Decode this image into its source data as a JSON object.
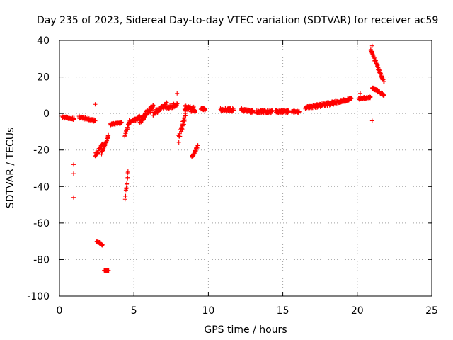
{
  "chart_data": {
    "type": "scatter",
    "title": "Day 235 of 2023, Sidereal Day-to-day VTEC variation (SDTVAR) for receiver ac59",
    "xlabel": "GPS time / hours",
    "ylabel": "SDTVAR / TECUs",
    "xlim": [
      0,
      25
    ],
    "ylim": [
      -100,
      40
    ],
    "xticks": [
      0,
      5,
      10,
      15,
      20,
      25
    ],
    "yticks": [
      -100,
      -80,
      -60,
      -40,
      -20,
      0,
      20,
      40
    ],
    "xtick_labels": [
      "0",
      "5",
      "10",
      "15",
      "20",
      "25"
    ],
    "ytick_labels": [
      "-100",
      "-80",
      "-60",
      "-40",
      "-20",
      "0",
      "20",
      "40"
    ],
    "grid": true,
    "marker": "+",
    "color": "#ff0000",
    "segments": [
      {
        "x0": 0.2,
        "x1": 1.0,
        "y0": -2,
        "y1": -3,
        "jitter": 1.2
      },
      {
        "x0": 1.3,
        "x1": 2.4,
        "y0": -2,
        "y1": -4,
        "jitter": 1.2
      },
      {
        "x0": 2.4,
        "x1": 2.9,
        "y0": -23,
        "y1": -17,
        "jitter": 2.0
      },
      {
        "x0": 2.8,
        "x1": 3.3,
        "y0": -22,
        "y1": -12,
        "jitter": 1.5
      },
      {
        "x0": 2.5,
        "x1": 2.9,
        "y0": -70,
        "y1": -72,
        "jitter": 0.8
      },
      {
        "x0": 3.0,
        "x1": 3.3,
        "y0": -86,
        "y1": -86,
        "jitter": 0.3
      },
      {
        "x0": 3.4,
        "x1": 4.2,
        "y0": -6,
        "y1": -5,
        "jitter": 0.8
      },
      {
        "x0": 4.4,
        "x1": 4.7,
        "y0": -12,
        "y1": -4,
        "jitter": 1.5
      },
      {
        "x0": 4.4,
        "x1": 4.6,
        "y0": -47,
        "y1": -32,
        "jitter": 2.0
      },
      {
        "x0": 4.7,
        "x1": 5.4,
        "y0": -5,
        "y1": -2,
        "jitter": 1.5
      },
      {
        "x0": 5.4,
        "x1": 6.3,
        "y0": -4,
        "y1": 4,
        "jitter": 3.0
      },
      {
        "x0": 6.3,
        "x1": 7.2,
        "y0": 0,
        "y1": 5,
        "jitter": 2.5
      },
      {
        "x0": 7.2,
        "x1": 7.9,
        "y0": 3,
        "y1": 5,
        "jitter": 2.0
      },
      {
        "x0": 8.0,
        "x1": 8.5,
        "y0": -14,
        "y1": 0,
        "jitter": 4.0
      },
      {
        "x0": 8.4,
        "x1": 9.1,
        "y0": 3,
        "y1": 2,
        "jitter": 3.0
      },
      {
        "x0": 8.9,
        "x1": 9.3,
        "y0": -24,
        "y1": -18,
        "jitter": 2.0
      },
      {
        "x0": 9.5,
        "x1": 9.8,
        "y0": 3,
        "y1": 2,
        "jitter": 1.5
      },
      {
        "x0": 10.8,
        "x1": 11.7,
        "y0": 2,
        "y1": 2,
        "jitter": 2.0
      },
      {
        "x0": 12.2,
        "x1": 13.0,
        "y0": 2,
        "y1": 1,
        "jitter": 1.5
      },
      {
        "x0": 13.2,
        "x1": 14.3,
        "y0": 1,
        "y1": 1,
        "jitter": 2.0
      },
      {
        "x0": 14.5,
        "x1": 15.4,
        "y0": 1,
        "y1": 1,
        "jitter": 1.5
      },
      {
        "x0": 15.6,
        "x1": 16.1,
        "y0": 1,
        "y1": 1,
        "jitter": 1.0
      },
      {
        "x0": 16.5,
        "x1": 17.2,
        "y0": 3,
        "y1": 4,
        "jitter": 1.5
      },
      {
        "x0": 17.2,
        "x1": 18.5,
        "y0": 4,
        "y1": 6,
        "jitter": 2.0
      },
      {
        "x0": 18.5,
        "x1": 19.6,
        "y0": 6,
        "y1": 8,
        "jitter": 1.5
      },
      {
        "x0": 20.1,
        "x1": 20.9,
        "y0": 8,
        "y1": 9,
        "jitter": 1.0
      },
      {
        "x0": 20.9,
        "x1": 21.8,
        "y0": 35,
        "y1": 17,
        "jitter": 2.0
      },
      {
        "x0": 21.0,
        "x1": 21.8,
        "y0": 14,
        "y1": 10,
        "jitter": 1.2
      }
    ],
    "outliers": [
      {
        "x": 0.95,
        "y": -28
      },
      {
        "x": 0.95,
        "y": -33
      },
      {
        "x": 0.95,
        "y": -46
      },
      {
        "x": 2.4,
        "y": 5
      },
      {
        "x": 7.9,
        "y": 11
      },
      {
        "x": 20.2,
        "y": 11
      },
      {
        "x": 21.0,
        "y": -4
      },
      {
        "x": 21.0,
        "y": 37
      }
    ]
  }
}
